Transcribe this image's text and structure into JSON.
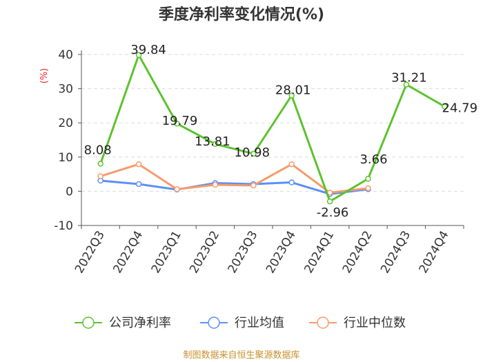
{
  "chart_data": {
    "type": "line",
    "title": "季度净利率变化情况(%)",
    "ylabel": "(%)",
    "xlabel": "",
    "ylim": [
      -10,
      40
    ],
    "yticks": [
      -10,
      0,
      10,
      20,
      30,
      40
    ],
    "categories": [
      "2022Q3",
      "2022Q4",
      "2023Q1",
      "2023Q2",
      "2023Q3",
      "2023Q4",
      "2024Q1",
      "2024Q2",
      "2024Q3",
      "2024Q4"
    ],
    "grid": true,
    "legend_position": "bottom",
    "series": [
      {
        "name": "公司净利率",
        "color": "#5cc22d",
        "values": [
          8.08,
          39.84,
          19.79,
          13.81,
          10.98,
          28.01,
          -2.96,
          3.66,
          31.21,
          24.79
        ],
        "labels": [
          "8.08",
          "39.84",
          "19.79",
          "13.81",
          "10.98",
          "28.01",
          "-2.96",
          "3.66",
          "31.21",
          "24.79"
        ]
      },
      {
        "name": "行业均值",
        "color": "#5b8ff9",
        "values": [
          3.1,
          2.1,
          0.5,
          2.4,
          2.1,
          2.6,
          -0.8,
          0.6,
          null,
          null
        ]
      },
      {
        "name": "行业中位数",
        "color": "#f79a6c",
        "values": [
          4.4,
          7.9,
          0.6,
          1.9,
          1.7,
          7.9,
          -0.4,
          0.9,
          null,
          null
        ]
      }
    ],
    "source": "制图数据来自恒生聚源数据库"
  }
}
